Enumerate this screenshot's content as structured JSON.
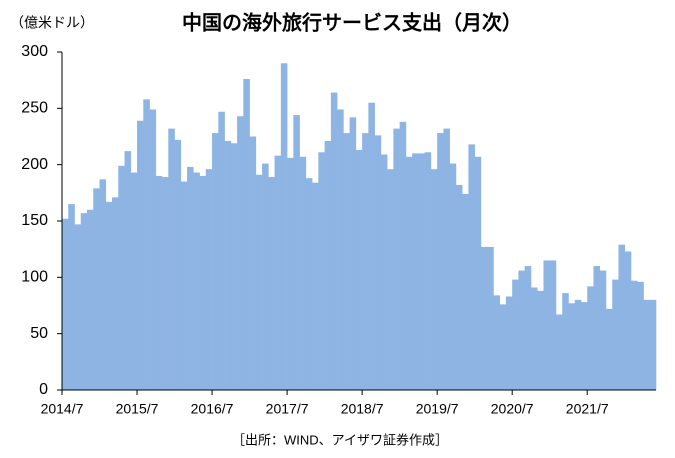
{
  "chart_data": {
    "type": "bar",
    "title": "中国の海外旅行サービス支出（月次）",
    "unit_label": "（億米ドル）",
    "source": "［出所：WIND、アイザワ証券作成］",
    "color": "#8eb4e3",
    "categories": [
      "2014/7",
      null,
      null,
      null,
      null,
      null,
      null,
      null,
      null,
      null,
      null,
      null,
      "2015/7",
      null,
      null,
      null,
      null,
      null,
      null,
      null,
      null,
      null,
      null,
      null,
      "2016/7",
      null,
      null,
      null,
      null,
      null,
      null,
      null,
      null,
      null,
      null,
      null,
      "2017/7",
      null,
      null,
      null,
      null,
      null,
      null,
      null,
      null,
      null,
      null,
      null,
      "2018/7",
      null,
      null,
      null,
      null,
      null,
      null,
      null,
      null,
      null,
      null,
      null,
      "2019/7",
      null,
      null,
      null,
      null,
      null,
      null,
      null,
      null,
      null,
      null,
      null,
      "2020/7",
      null,
      null,
      null,
      null,
      null,
      null,
      null,
      null,
      null,
      null,
      null,
      "2021/7",
      null,
      null,
      null,
      null,
      null,
      null,
      null,
      null,
      null,
      null
    ],
    "values": [
      152,
      165,
      147,
      157,
      160,
      179,
      187,
      167,
      171,
      199,
      212,
      193,
      239,
      258,
      249,
      190,
      189,
      232,
      222,
      185,
      198,
      193,
      190,
      196,
      228,
      247,
      221,
      219,
      243,
      276,
      225,
      191,
      201,
      189,
      208,
      290,
      206,
      244,
      207,
      188,
      184,
      211,
      221,
      264,
      249,
      228,
      242,
      213,
      228,
      255,
      226,
      209,
      196,
      232,
      238,
      207,
      210,
      210,
      211,
      196,
      228,
      232,
      201,
      182,
      174,
      218,
      207,
      127,
      127,
      84,
      76,
      83,
      98,
      106,
      110,
      91,
      88,
      115,
      115,
      67,
      86,
      77,
      80,
      78,
      92,
      110,
      106,
      72,
      98,
      129,
      123,
      97,
      96,
      80,
      80
    ],
    "ylim": [
      0,
      300
    ],
    "yticks": [
      0,
      50,
      100,
      150,
      200,
      250,
      300
    ],
    "grid": false
  }
}
